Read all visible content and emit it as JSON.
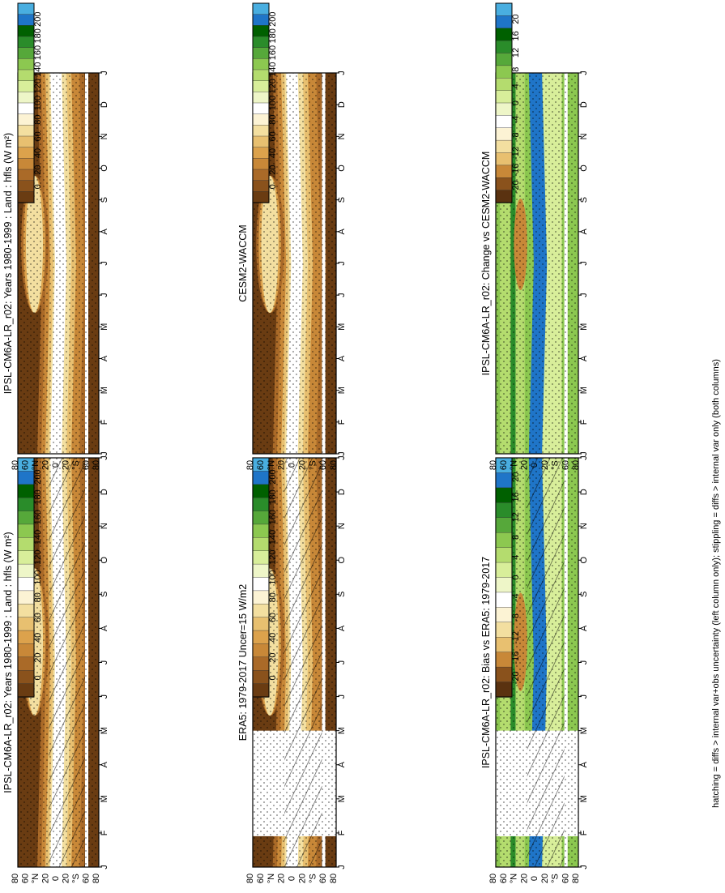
{
  "figure": {
    "orientation": "rotated 90° counter-clockwise (landscape figure)",
    "footnote": "hatching = diffs > internal var+obs uncertainty (left column only); stippling = diffs > internal var only (both columns)"
  },
  "colors": {
    "value_scale": [
      "#49aee0",
      "#1f75c8",
      "#006000",
      "#2a8c2a",
      "#56a83a",
      "#8cc850",
      "#b4dc6e",
      "#d8ee9a",
      "#eef6c8",
      "#ffffff",
      "#fcf3d4",
      "#f3dfa0",
      "#e8c070",
      "#dca24c",
      "#c88838",
      "#aa6a28",
      "#8a521c",
      "#6a3c12"
    ],
    "diff_scale": [
      "#49aee0",
      "#1f75c8",
      "#006000",
      "#2a8c2a",
      "#56a83a",
      "#8cc850",
      "#b4dc6e",
      "#d8ee9a",
      "#eef6c8",
      "#ffffff",
      "#fcf3d4",
      "#f3dfa0",
      "#e8c070",
      "#c88838",
      "#8a521c",
      "#5a3210"
    ],
    "missing": "#ffffff"
  },
  "chart_data": [
    {
      "type": "heatmap",
      "id": "model-climatology",
      "title": "IPSL-CM6A-LR_r02: Years 1980-1999 : Land : hfls (W m²)",
      "x": [
        "J",
        "F",
        "M",
        "A",
        "M",
        "J",
        "J",
        "A",
        "S",
        "O",
        "N",
        "D",
        "J"
      ],
      "y": [
        "80",
        "60",
        "°N",
        "20",
        "0",
        "20",
        "°S",
        "60",
        "80"
      ],
      "colorbar": {
        "ticks": [
          "200",
          "180",
          "160",
          "140",
          "120",
          "100",
          "80",
          "60",
          "40",
          "20",
          "0"
        ]
      },
      "hatching": true,
      "stippling": true
    },
    {
      "type": "heatmap",
      "id": "reference-obs",
      "title": "ERA5: 1979-2017 Uncer=15 W/m2",
      "x": [
        "J",
        "F",
        "M",
        "A",
        "M",
        "J",
        "J",
        "A",
        "S",
        "O",
        "N",
        "D",
        "J"
      ],
      "y": [
        "80",
        "60",
        "°N",
        "20",
        "0",
        "20",
        "°S",
        "60",
        "80"
      ],
      "colorbar": {
        "ticks": [
          "200",
          "180",
          "160",
          "140",
          "120",
          "100",
          "80",
          "60",
          "40",
          "20",
          "0"
        ]
      },
      "missing_months": [
        "F",
        "M",
        "A"
      ],
      "hatching": true,
      "stippling": true
    },
    {
      "type": "heatmap",
      "id": "model-bias",
      "title": "IPSL-CM6A-LR_r02: Bias vs ERA5: 1979-2017",
      "x": [
        "J",
        "F",
        "M",
        "A",
        "M",
        "J",
        "J",
        "A",
        "S",
        "O",
        "N",
        "D",
        "J"
      ],
      "y": [
        "80",
        "60",
        "°N",
        "20",
        "0",
        "20",
        "°S",
        "60",
        "80"
      ],
      "colorbar": {
        "ticks": [
          "20",
          "16",
          "12",
          "8",
          "4",
          "0",
          "-4",
          "-8",
          "-12",
          "-16",
          "-20"
        ]
      },
      "missing_months": [
        "F",
        "M",
        "A"
      ],
      "hatching": true,
      "stippling": true
    },
    {
      "type": "heatmap",
      "id": "model-climatology-2",
      "title": "IPSL-CM6A-LR_r02: Years 1980-1999 : Land : hfls (W m²)",
      "x": [
        "J",
        "F",
        "M",
        "A",
        "M",
        "J",
        "J",
        "A",
        "S",
        "O",
        "N",
        "D",
        "J"
      ],
      "y": [
        "80",
        "60",
        "°N",
        "20",
        "0",
        "20",
        "°S",
        "60",
        "80"
      ],
      "colorbar": {
        "ticks": [
          "200",
          "180",
          "160",
          "140",
          "120",
          "100",
          "80",
          "60",
          "40",
          "20",
          "0"
        ]
      },
      "hatching": false,
      "stippling": true
    },
    {
      "type": "heatmap",
      "id": "comparison-model",
      "title": "CESM2-WACCM",
      "x": [
        "J",
        "F",
        "M",
        "A",
        "M",
        "J",
        "J",
        "A",
        "S",
        "O",
        "N",
        "D",
        "J"
      ],
      "y": [
        "80",
        "60",
        "°N",
        "20",
        "0",
        "20",
        "°S",
        "60",
        "80"
      ],
      "colorbar": {
        "ticks": [
          "200",
          "180",
          "160",
          "140",
          "120",
          "100",
          "80",
          "60",
          "40",
          "20",
          "0"
        ]
      },
      "hatching": false,
      "stippling": true
    },
    {
      "type": "heatmap",
      "id": "model-change",
      "title": "IPSL-CM6A-LR_r02: Change vs CESM2-WACCM",
      "x": [
        "J",
        "F",
        "M",
        "A",
        "M",
        "J",
        "J",
        "A",
        "S",
        "O",
        "N",
        "D",
        "J"
      ],
      "y": [
        "80",
        "60",
        "°N",
        "20",
        "0",
        "20",
        "°S",
        "60",
        "80"
      ],
      "colorbar": {
        "ticks": [
          "20",
          "16",
          "12",
          "8",
          "4",
          "0",
          "-4",
          "-8",
          "-12",
          "-16",
          "-20"
        ]
      },
      "hatching": false,
      "stippling": true
    }
  ]
}
